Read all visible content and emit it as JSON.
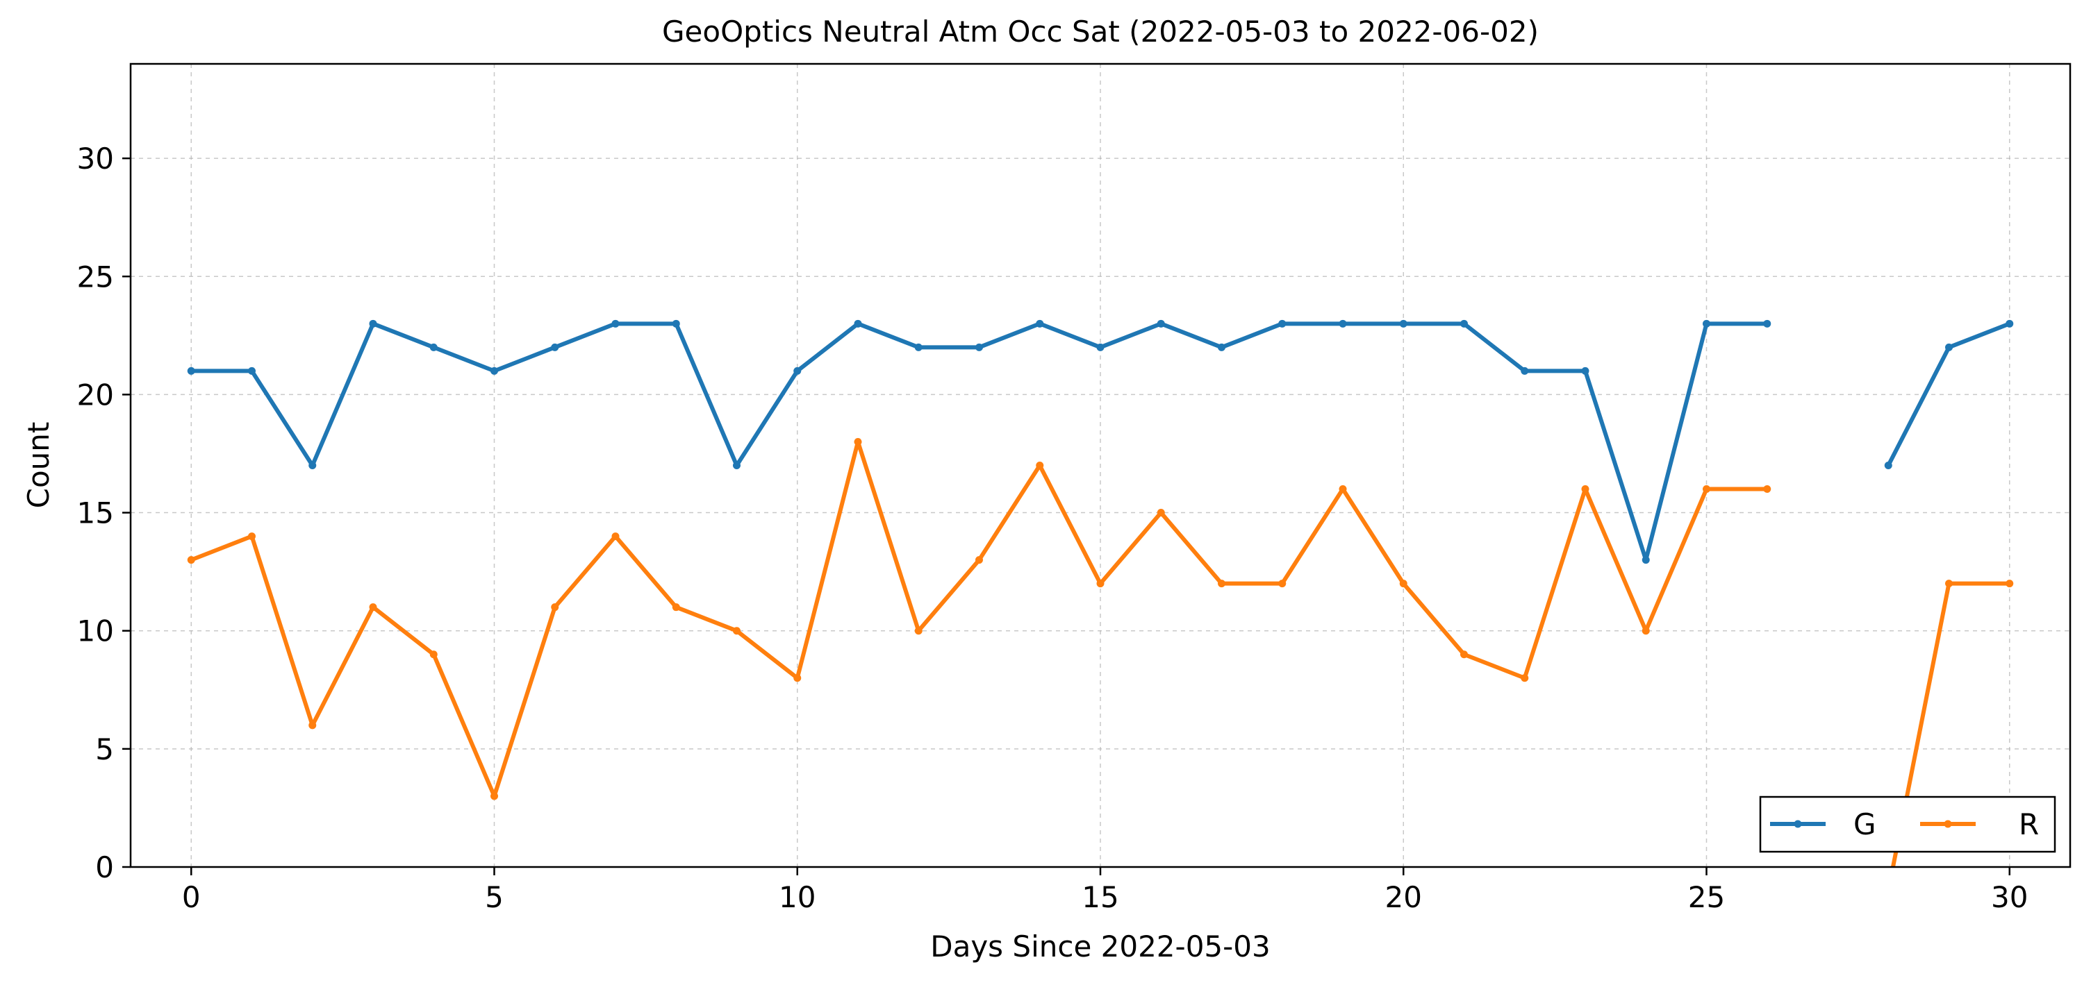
{
  "chart_data": {
    "type": "line",
    "title": "GeoOptics Neutral Atm Occ Sat (2022-05-03 to 2022-06-02)",
    "xlabel": "Days Since 2022-05-03",
    "ylabel": "Count",
    "xlim": [
      -1,
      31
    ],
    "ylim": [
      0,
      34
    ],
    "xticks": [
      0,
      5,
      10,
      15,
      20,
      25,
      30
    ],
    "yticks": [
      0,
      5,
      10,
      15,
      20,
      25,
      30
    ],
    "grid": true,
    "legend_position": "lower-right",
    "x": [
      0,
      1,
      2,
      3,
      4,
      5,
      6,
      7,
      8,
      9,
      10,
      11,
      12,
      13,
      14,
      15,
      16,
      17,
      18,
      19,
      20,
      21,
      22,
      23,
      24,
      25,
      26,
      27,
      28,
      29,
      30
    ],
    "series": [
      {
        "name": "G",
        "color": "#1f77b4",
        "values": [
          21,
          21,
          17,
          23,
          22,
          21,
          22,
          23,
          23,
          17,
          21,
          23,
          22,
          22,
          23,
          22,
          23,
          22,
          23,
          23,
          23,
          23,
          21,
          21,
          13,
          23,
          23,
          null,
          17,
          22,
          23
        ]
      },
      {
        "name": "R",
        "color": "#ff7f0e",
        "values": [
          13,
          14,
          6,
          11,
          9,
          3,
          11,
          14,
          11,
          10,
          8,
          18,
          10,
          13,
          17,
          12,
          15,
          12,
          12,
          16,
          12,
          9,
          8,
          16,
          10,
          16,
          16,
          null,
          -1,
          12,
          12
        ]
      }
    ]
  }
}
